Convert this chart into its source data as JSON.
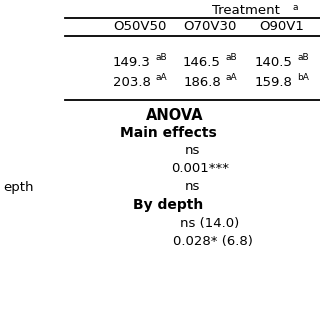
{
  "bg_color": "#ffffff",
  "text_color": "#000000",
  "treatment_label": "Treatment",
  "treatment_sup": "a",
  "col_headers": [
    "O50V50",
    "O70V30",
    "O90V1"
  ],
  "row1_vals": [
    "149.3",
    "146.5",
    "140.5"
  ],
  "row1_sups": [
    "aB",
    "aB",
    "aB"
  ],
  "row2_vals": [
    "203.8",
    "186.8",
    "159.8"
  ],
  "row2_sups": [
    "aA",
    "aA",
    "bA"
  ],
  "anova_title": "ANOVA",
  "main_effects": "Main effects",
  "me_row1": "ns",
  "me_row2": "0.001***",
  "me_row3": "ns",
  "left_label": "epth",
  "by_depth": "By depth",
  "bd_row1": "ns (14.0)",
  "bd_row2": "0.028* (6.8)"
}
